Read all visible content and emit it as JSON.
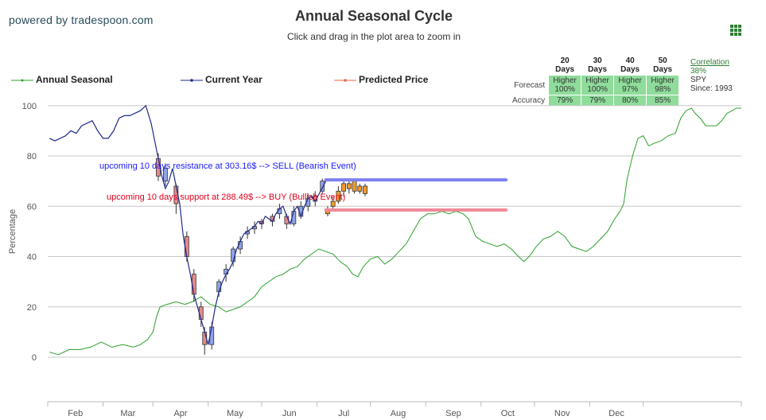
{
  "header": {
    "powered_by": "powered by tradespoon.com"
  },
  "legend": {
    "items": [
      {
        "label": "Annual Seasonal",
        "color": "#2ca02c"
      },
      {
        "label": "Current Year",
        "color": "#1f2a8a"
      },
      {
        "label": "Predicted Price",
        "color": "#e8674a"
      }
    ]
  },
  "stats_table": {
    "columns": [
      "20 Days",
      "30 Days",
      "40 Days",
      "50 Days"
    ],
    "forecast_label": "Forecast",
    "accuracy_label": "Accuracy",
    "forecast": [
      {
        "dir": "Higher",
        "pct": "100%"
      },
      {
        "dir": "Higher",
        "pct": "100%"
      },
      {
        "dir": "Higher",
        "pct": "97%"
      },
      {
        "dir": "Higher",
        "pct": "98%"
      }
    ],
    "accuracy": [
      "79%",
      "79%",
      "80%",
      "85%"
    ]
  },
  "correlation": {
    "label": "Correlation",
    "value": "38%",
    "symbol": "SPY",
    "since": "Since: 1993"
  },
  "colors": {
    "seasonal": "#2ca02c",
    "current": "#1f2a8a",
    "resistance": "#7d80f0",
    "support": "#f08a9a",
    "candle_up": "#8fa3e8",
    "candle_down": "#e58a8a",
    "predicted": "#f39a2a"
  },
  "chart_data": {
    "type": "line",
    "title": "Annual Seasonal Cycle",
    "subtitle": "Click and drag in the plot area to zoom in",
    "ylabel": "Percentage",
    "xlabel": "",
    "ylim": [
      -15,
      105
    ],
    "yticks": [
      0,
      20,
      40,
      60,
      80,
      100
    ],
    "xticks": [
      "Feb",
      "Mar",
      "Apr",
      "May",
      "Jun",
      "Jul",
      "Aug",
      "Sep",
      "Oct",
      "Nov",
      "Dec"
    ],
    "x_unit": "day of year",
    "grid": true,
    "annual_seasonal": [
      [
        1,
        2
      ],
      [
        6,
        1
      ],
      [
        12,
        3
      ],
      [
        18,
        3
      ],
      [
        24,
        4
      ],
      [
        30,
        6
      ],
      [
        36,
        4
      ],
      [
        42,
        5
      ],
      [
        48,
        4
      ],
      [
        52,
        5
      ],
      [
        56,
        7
      ],
      [
        59,
        10
      ],
      [
        61,
        16
      ],
      [
        63,
        20
      ],
      [
        67,
        21
      ],
      [
        72,
        22
      ],
      [
        77,
        21
      ],
      [
        81,
        22
      ],
      [
        86,
        24
      ],
      [
        91,
        21
      ],
      [
        96,
        20
      ],
      [
        100,
        18
      ],
      [
        104,
        19
      ],
      [
        108,
        20
      ],
      [
        112,
        22
      ],
      [
        116,
        24
      ],
      [
        120,
        28
      ],
      [
        124,
        30
      ],
      [
        128,
        32
      ],
      [
        132,
        33
      ],
      [
        136,
        35
      ],
      [
        140,
        36
      ],
      [
        144,
        39
      ],
      [
        148,
        41
      ],
      [
        152,
        43
      ],
      [
        156,
        42
      ],
      [
        160,
        41
      ],
      [
        164,
        38
      ],
      [
        168,
        36
      ],
      [
        171,
        33
      ],
      [
        174,
        32
      ],
      [
        177,
        36
      ],
      [
        181,
        39
      ],
      [
        185,
        40
      ],
      [
        189,
        37
      ],
      [
        193,
        39
      ],
      [
        197,
        42
      ],
      [
        201,
        45
      ],
      [
        205,
        50
      ],
      [
        209,
        55
      ],
      [
        213,
        57
      ],
      [
        217,
        57
      ],
      [
        221,
        58
      ],
      [
        225,
        57
      ],
      [
        229,
        58
      ],
      [
        233,
        57
      ],
      [
        236,
        55
      ],
      [
        240,
        48
      ],
      [
        244,
        46
      ],
      [
        248,
        45
      ],
      [
        252,
        44
      ],
      [
        256,
        45
      ],
      [
        260,
        43
      ],
      [
        264,
        40
      ],
      [
        267,
        38
      ],
      [
        270,
        40
      ],
      [
        274,
        44
      ],
      [
        278,
        47
      ],
      [
        282,
        48
      ],
      [
        286,
        50
      ],
      [
        290,
        48
      ],
      [
        294,
        44
      ],
      [
        298,
        43
      ],
      [
        302,
        42
      ],
      [
        306,
        44
      ],
      [
        310,
        47
      ],
      [
        314,
        50
      ],
      [
        318,
        55
      ],
      [
        321,
        58
      ],
      [
        323,
        61
      ],
      [
        325,
        71
      ],
      [
        328,
        80
      ],
      [
        331,
        87
      ],
      [
        334,
        88
      ],
      [
        337,
        84
      ],
      [
        340,
        85
      ],
      [
        344,
        86
      ],
      [
        348,
        88
      ],
      [
        352,
        89
      ],
      [
        355,
        95
      ],
      [
        358,
        98
      ],
      [
        361,
        99
      ],
      [
        363,
        97
      ],
      [
        366,
        95
      ],
      [
        369,
        92
      ],
      [
        372,
        92
      ],
      [
        375,
        92
      ],
      [
        378,
        94
      ],
      [
        381,
        97
      ],
      [
        384,
        98
      ],
      [
        386,
        99
      ],
      [
        389,
        99
      ]
    ],
    "current_year": [
      [
        1,
        87
      ],
      [
        4,
        86
      ],
      [
        7,
        87
      ],
      [
        10,
        88
      ],
      [
        13,
        90
      ],
      [
        16,
        89
      ],
      [
        19,
        92
      ],
      [
        22,
        93
      ],
      [
        25,
        94
      ],
      [
        28,
        90
      ],
      [
        31,
        87
      ],
      [
        34,
        87
      ],
      [
        37,
        90
      ],
      [
        40,
        95
      ],
      [
        43,
        96
      ],
      [
        46,
        96
      ],
      [
        49,
        97
      ],
      [
        52,
        98
      ],
      [
        55,
        100
      ],
      [
        58,
        93
      ],
      [
        60,
        86
      ],
      [
        62,
        79
      ],
      [
        64,
        72
      ],
      [
        66,
        67
      ],
      [
        68,
        70
      ],
      [
        70,
        75
      ],
      [
        72,
        68
      ],
      [
        74,
        61
      ],
      [
        76,
        48
      ],
      [
        78,
        40
      ],
      [
        80,
        33
      ],
      [
        82,
        25
      ],
      [
        84,
        20
      ],
      [
        86,
        15
      ],
      [
        88,
        10
      ],
      [
        90,
        5
      ],
      [
        92,
        12
      ],
      [
        94,
        20
      ],
      [
        96,
        26
      ],
      [
        98,
        30
      ],
      [
        100,
        33
      ],
      [
        102,
        35
      ],
      [
        104,
        38
      ],
      [
        106,
        43
      ],
      [
        108,
        46
      ],
      [
        110,
        49
      ],
      [
        112,
        50
      ],
      [
        114,
        51
      ],
      [
        116,
        52
      ],
      [
        118,
        54
      ],
      [
        120,
        53
      ],
      [
        122,
        56
      ],
      [
        124,
        55
      ],
      [
        126,
        54
      ],
      [
        128,
        57
      ],
      [
        130,
        59
      ],
      [
        132,
        60
      ],
      [
        134,
        56
      ],
      [
        136,
        53
      ],
      [
        138,
        58
      ],
      [
        140,
        60
      ],
      [
        142,
        56
      ],
      [
        144,
        60
      ],
      [
        146,
        63
      ],
      [
        148,
        64
      ],
      [
        150,
        62
      ],
      [
        153,
        66
      ],
      [
        156,
        70
      ]
    ],
    "resistance": {
      "label": "upcoming 10 days resistance at 303.16$ --> SELL (Bearish Event)",
      "y": 70.5,
      "x": [
        156,
        257
      ]
    },
    "support": {
      "label": "upcoming 10 days support at 288.49$ --> BUY (Bullish Event)",
      "y": 58.5,
      "x": [
        156,
        257
      ]
    },
    "predicted_candles": [
      [
        157,
        58,
        57,
        60,
        56
      ],
      [
        160,
        60,
        62,
        64,
        59
      ],
      [
        163,
        62,
        66,
        68,
        61
      ],
      [
        166,
        66,
        69,
        71,
        64
      ],
      [
        169,
        69,
        67,
        70,
        65
      ],
      [
        172,
        66,
        70,
        71,
        65
      ],
      [
        175,
        68,
        66,
        69,
        65
      ],
      [
        178,
        65,
        68,
        69,
        64
      ]
    ],
    "current_candles": [
      [
        62,
        79,
        72,
        81,
        70
      ],
      [
        66,
        70,
        75,
        77,
        68
      ],
      [
        72,
        68,
        61,
        69,
        57
      ],
      [
        78,
        48,
        40,
        50,
        38
      ],
      [
        82,
        33,
        25,
        35,
        22
      ],
      [
        86,
        20,
        15,
        22,
        12
      ],
      [
        88,
        10,
        5,
        12,
        1
      ],
      [
        92,
        5,
        12,
        14,
        3
      ],
      [
        96,
        26,
        30,
        31,
        24
      ],
      [
        100,
        33,
        35,
        37,
        30
      ],
      [
        104,
        38,
        43,
        44,
        36
      ],
      [
        108,
        43,
        46,
        48,
        41
      ],
      [
        112,
        49,
        50,
        52,
        47
      ],
      [
        116,
        51,
        52,
        54,
        49
      ],
      [
        120,
        54,
        53,
        55,
        51
      ],
      [
        126,
        56,
        54,
        57,
        52
      ],
      [
        130,
        57,
        59,
        61,
        55
      ],
      [
        134,
        56,
        53,
        57,
        51
      ],
      [
        138,
        53,
        58,
        60,
        52
      ],
      [
        142,
        56,
        60,
        62,
        55
      ],
      [
        146,
        60,
        63,
        65,
        58
      ],
      [
        150,
        64,
        62,
        66,
        60
      ],
      [
        154,
        66,
        70,
        71,
        65
      ]
    ]
  }
}
